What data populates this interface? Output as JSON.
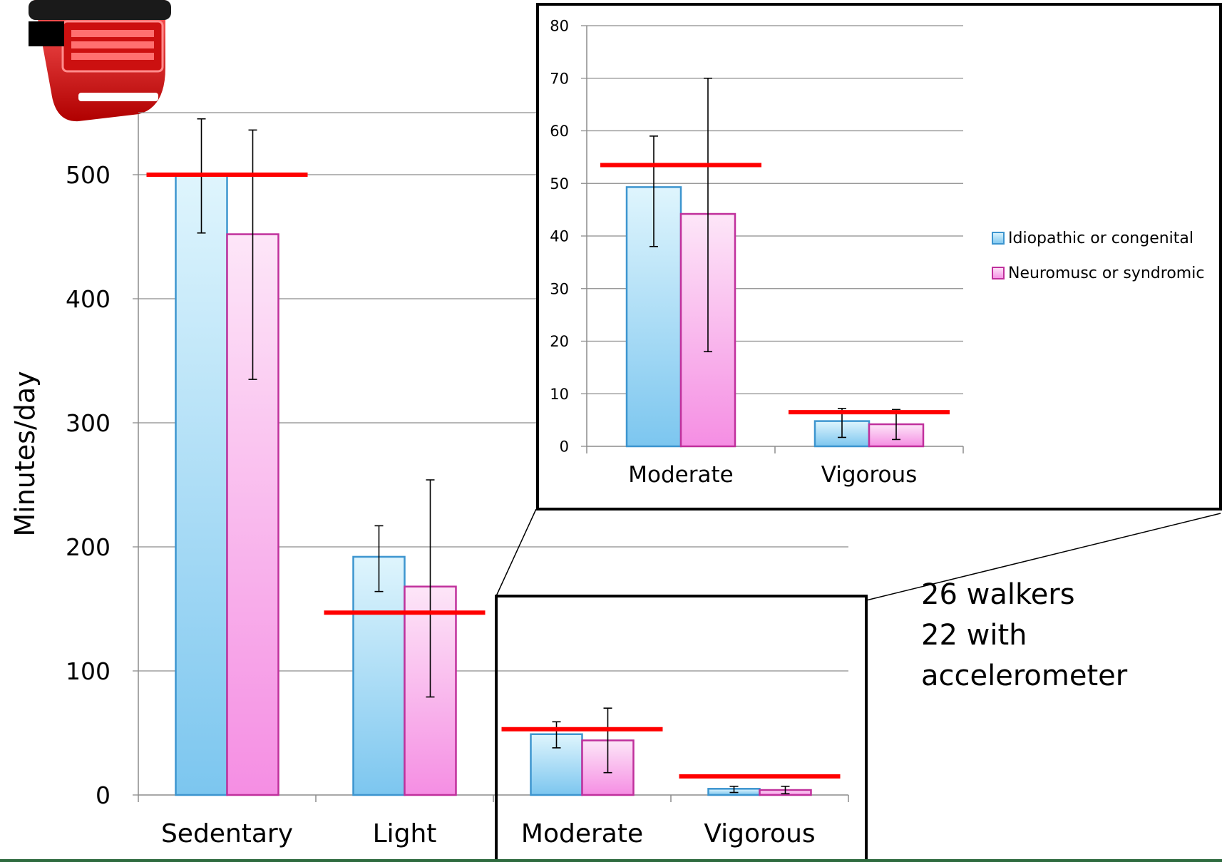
{
  "colors": {
    "series1_fill_top": "#dff5fd",
    "series1_fill_bottom": "#7cc6ef",
    "series1_stroke": "#3d95cf",
    "series2_fill_top": "#fde6f8",
    "series2_fill_bottom": "#f58ee3",
    "series2_stroke": "#c0309c",
    "reference_line": "#ff0000",
    "grid": "#8c8c8c",
    "accent_strip": "#2e6b3f"
  },
  "chart_data": [
    {
      "type": "bar",
      "ylabel": "Minutes/day",
      "ylim": [
        0,
        550
      ],
      "yticks": [
        0,
        100,
        200,
        300,
        400,
        500
      ],
      "categories": [
        "Sedentary",
        "Light",
        "Moderate",
        "Vigorous"
      ],
      "series": [
        {
          "name": "Idiopathic or congenital",
          "values": [
            500,
            192,
            49,
            5
          ],
          "error_low": [
            453,
            164,
            38,
            2
          ],
          "error_high": [
            545,
            217,
            59,
            7
          ]
        },
        {
          "name": "Neuromusc or syndromic",
          "values": [
            452,
            168,
            44,
            4
          ],
          "error_low": [
            335,
            79,
            18,
            1
          ],
          "error_high": [
            536,
            254,
            70,
            7
          ]
        }
      ],
      "reference_lines": [
        500,
        147,
        53,
        15
      ],
      "grid": true
    },
    {
      "type": "bar",
      "ylim": [
        0,
        80
      ],
      "yticks": [
        0,
        10,
        20,
        30,
        40,
        50,
        60,
        70,
        80
      ],
      "categories": [
        "Moderate",
        "Vigorous"
      ],
      "series": [
        {
          "name": "Idiopathic or congenital",
          "values": [
            49.3,
            4.8
          ],
          "error_low": [
            38,
            1.7
          ],
          "error_high": [
            59,
            7.2
          ]
        },
        {
          "name": "Neuromusc or syndromic",
          "values": [
            44.2,
            4.2
          ],
          "error_low": [
            18,
            1.3
          ],
          "error_high": [
            70,
            7
          ]
        }
      ],
      "reference_lines": [
        53.5,
        6.5
      ],
      "legend": "right",
      "grid": true
    }
  ],
  "note": {
    "lines": [
      "26 walkers",
      "22 with",
      "accelerometer"
    ]
  },
  "device_image": {
    "icon": "accelerometer-device-icon"
  }
}
